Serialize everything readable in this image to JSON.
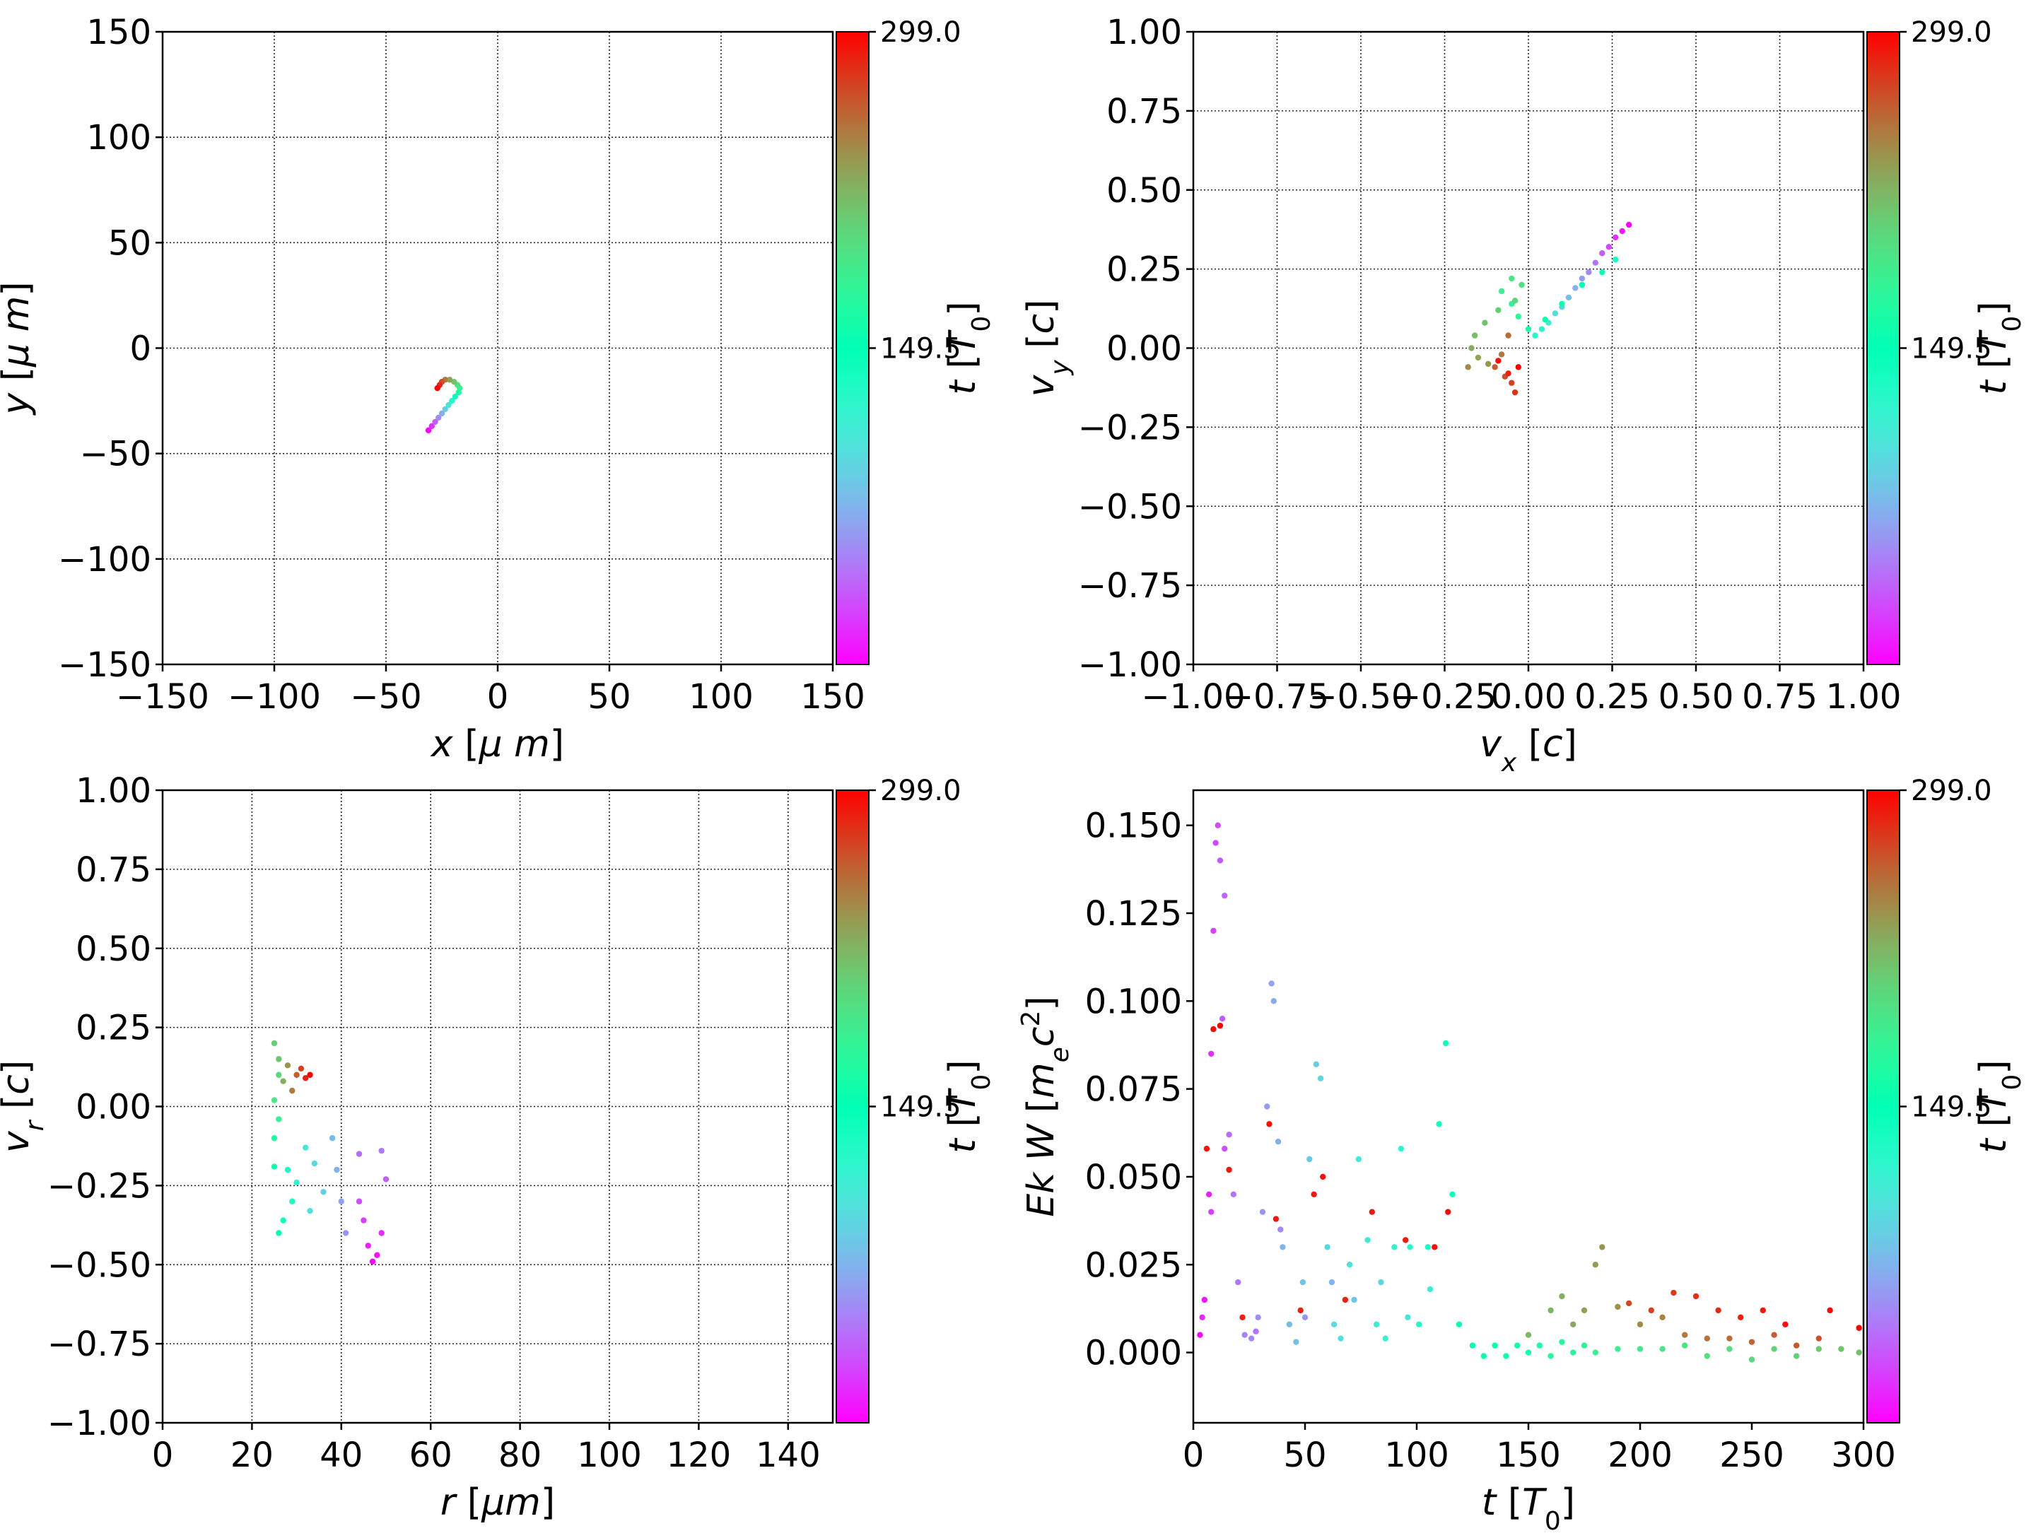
{
  "colormap": "rainbow",
  "chart_data": [
    {
      "id": "xy",
      "type": "scatter",
      "xlabel": "x  [μ m]",
      "ylabel": "y  [μ m]",
      "xlim": [
        -150,
        150
      ],
      "ylim": [
        -150,
        150
      ],
      "xticks": [
        -150,
        -100,
        -50,
        0,
        50,
        100,
        150
      ],
      "yticks": [
        -150,
        -100,
        -50,
        0,
        50,
        100,
        150
      ],
      "xtick_labels": [
        "−150",
        "−100",
        "−50",
        "0",
        "50",
        "100",
        "150"
      ],
      "ytick_labels": [
        "−150",
        "−100",
        "−50",
        "0",
        "50",
        "100",
        "150"
      ],
      "grid": true,
      "colorbar": {
        "label": "t [T0]",
        "ticks": [
          "149.5",
          "299.0"
        ]
      },
      "points": [
        [
          -31,
          -39,
          0.0
        ],
        [
          -29.5,
          -37,
          0.06
        ],
        [
          -28,
          -35,
          0.12
        ],
        [
          -26.5,
          -33,
          0.18
        ],
        [
          -25,
          -31,
          0.24
        ],
        [
          -23.5,
          -29,
          0.3
        ],
        [
          -22,
          -27,
          0.36
        ],
        [
          -20.5,
          -25,
          0.42
        ],
        [
          -19,
          -23,
          0.48
        ],
        [
          -17.5,
          -21,
          0.54
        ],
        [
          -17,
          -19,
          0.6
        ],
        [
          -18,
          -17.5,
          0.66
        ],
        [
          -19.5,
          -16,
          0.72
        ],
        [
          -21.5,
          -15,
          0.78
        ],
        [
          -23.5,
          -15,
          0.84
        ],
        [
          -25,
          -16,
          0.9
        ],
        [
          -26,
          -17.5,
          0.95
        ],
        [
          -27,
          -19,
          1.0
        ]
      ]
    },
    {
      "id": "vxvy",
      "type": "scatter",
      "xlabel": "v_x [c]",
      "ylabel": "v_y [c]",
      "xlim": [
        -1.0,
        1.0
      ],
      "ylim": [
        -1.0,
        1.0
      ],
      "xticks": [
        -1.0,
        -0.75,
        -0.5,
        -0.25,
        0.0,
        0.25,
        0.5,
        0.75,
        1.0
      ],
      "yticks": [
        -1.0,
        -0.75,
        -0.5,
        -0.25,
        0.0,
        0.25,
        0.5,
        0.75,
        1.0
      ],
      "xtick_labels": [
        "−1.00",
        "−0.75",
        "−0.50",
        "−0.25",
        "0.00",
        "0.25",
        "0.50",
        "0.75",
        "1.00"
      ],
      "ytick_labels": [
        "−1.00",
        "−0.75",
        "−0.50",
        "−0.25",
        "0.00",
        "0.25",
        "0.50",
        "0.75",
        "1.00"
      ],
      "grid": true,
      "colorbar": {
        "label": "t [T0]",
        "ticks": [
          "149.5",
          "299.0"
        ]
      },
      "points": [
        [
          0.3,
          0.39,
          0.0
        ],
        [
          0.28,
          0.37,
          0.03
        ],
        [
          0.26,
          0.35,
          0.06
        ],
        [
          0.24,
          0.32,
          0.09
        ],
        [
          0.22,
          0.3,
          0.12
        ],
        [
          0.2,
          0.27,
          0.15
        ],
        [
          0.18,
          0.24,
          0.18
        ],
        [
          0.16,
          0.22,
          0.21
        ],
        [
          0.14,
          0.19,
          0.24
        ],
        [
          0.12,
          0.16,
          0.27
        ],
        [
          0.1,
          0.13,
          0.3
        ],
        [
          0.08,
          0.11,
          0.33
        ],
        [
          0.06,
          0.08,
          0.36
        ],
        [
          0.04,
          0.06,
          0.39
        ],
        [
          0.02,
          0.04,
          0.42
        ],
        [
          0.26,
          0.28,
          0.45
        ],
        [
          0.22,
          0.24,
          0.48
        ],
        [
          0.16,
          0.2,
          0.5
        ],
        [
          0.1,
          0.14,
          0.52
        ],
        [
          0.05,
          0.09,
          0.54
        ],
        [
          0.0,
          0.06,
          0.56
        ],
        [
          -0.03,
          0.1,
          0.58
        ],
        [
          -0.05,
          0.14,
          0.6
        ],
        [
          -0.08,
          0.18,
          0.62
        ],
        [
          -0.05,
          0.22,
          0.64
        ],
        [
          -0.02,
          0.2,
          0.66
        ],
        [
          -0.04,
          0.15,
          0.68
        ],
        [
          -0.09,
          0.12,
          0.7
        ],
        [
          -0.13,
          0.08,
          0.72
        ],
        [
          -0.16,
          0.04,
          0.74
        ],
        [
          -0.17,
          0.0,
          0.76
        ],
        [
          -0.15,
          -0.03,
          0.78
        ],
        [
          -0.12,
          -0.05,
          0.8
        ],
        [
          -0.18,
          -0.06,
          0.82
        ],
        [
          -0.08,
          -0.02,
          0.84
        ],
        [
          -0.06,
          0.04,
          0.86
        ],
        [
          -0.1,
          -0.06,
          0.88
        ],
        [
          -0.07,
          -0.09,
          0.9
        ],
        [
          -0.05,
          -0.11,
          0.92
        ],
        [
          -0.04,
          -0.14,
          0.94
        ],
        [
          -0.06,
          -0.08,
          0.96
        ],
        [
          -0.09,
          -0.04,
          0.98
        ],
        [
          -0.03,
          -0.06,
          1.0
        ]
      ]
    },
    {
      "id": "rvr",
      "type": "scatter",
      "xlabel": "r [μm]",
      "ylabel": "v_r [c]",
      "xlim": [
        0,
        150
      ],
      "ylim": [
        -1.0,
        1.0
      ],
      "xticks": [
        0,
        20,
        40,
        60,
        80,
        100,
        120,
        140
      ],
      "yticks": [
        -1.0,
        -0.75,
        -0.5,
        -0.25,
        0.0,
        0.25,
        0.5,
        0.75,
        1.0
      ],
      "xtick_labels": [
        "0",
        "20",
        "40",
        "60",
        "80",
        "100",
        "120",
        "140"
      ],
      "ytick_labels": [
        "−1.00",
        "−0.75",
        "−0.50",
        "−0.25",
        "0.00",
        "0.25",
        "0.50",
        "0.75",
        "1.00"
      ],
      "grid": true,
      "colorbar": {
        "label": "t [T0]",
        "ticks": [
          "149.5",
          "299.0"
        ]
      },
      "points": [
        [
          47,
          -0.49,
          0.0
        ],
        [
          48,
          -0.47,
          0.02
        ],
        [
          46,
          -0.44,
          0.04
        ],
        [
          49,
          -0.4,
          0.06
        ],
        [
          45,
          -0.36,
          0.08
        ],
        [
          44,
          -0.3,
          0.1
        ],
        [
          50,
          -0.23,
          0.12
        ],
        [
          44,
          -0.15,
          0.14
        ],
        [
          49,
          -0.14,
          0.16
        ],
        [
          41,
          -0.4,
          0.2
        ],
        [
          40,
          -0.3,
          0.22
        ],
        [
          39,
          -0.2,
          0.24
        ],
        [
          38,
          -0.1,
          0.26
        ],
        [
          36,
          -0.27,
          0.3
        ],
        [
          34,
          -0.18,
          0.32
        ],
        [
          33,
          -0.33,
          0.34
        ],
        [
          32,
          -0.13,
          0.36
        ],
        [
          30,
          -0.24,
          0.4
        ],
        [
          29,
          -0.3,
          0.44
        ],
        [
          28,
          -0.2,
          0.46
        ],
        [
          27,
          -0.36,
          0.48
        ],
        [
          26,
          -0.4,
          0.5
        ],
        [
          25,
          -0.19,
          0.52
        ],
        [
          25,
          -0.1,
          0.56
        ],
        [
          26,
          -0.04,
          0.6
        ],
        [
          25,
          0.02,
          0.64
        ],
        [
          26,
          0.1,
          0.68
        ],
        [
          25,
          0.2,
          0.7
        ],
        [
          26,
          0.15,
          0.72
        ],
        [
          27,
          0.08,
          0.76
        ],
        [
          28,
          0.13,
          0.8
        ],
        [
          29,
          0.05,
          0.84
        ],
        [
          30,
          0.1,
          0.88
        ],
        [
          31,
          0.12,
          0.92
        ],
        [
          32,
          0.09,
          0.96
        ],
        [
          33,
          0.1,
          1.0
        ]
      ]
    },
    {
      "id": "tEk",
      "type": "scatter",
      "xlabel": "t [T0]",
      "ylabel": "Ek W [m_e c^2]",
      "xlim": [
        0,
        300
      ],
      "ylim": [
        -0.02,
        0.16
      ],
      "xticks": [
        0,
        50,
        100,
        150,
        200,
        250,
        300
      ],
      "yticks": [
        0.0,
        0.025,
        0.05,
        0.075,
        0.1,
        0.125,
        0.15
      ],
      "xtick_labels": [
        "0",
        "50",
        "100",
        "150",
        "200",
        "250",
        "300"
      ],
      "ytick_labels": [
        "0.000",
        "0.025",
        "0.050",
        "0.075",
        "0.100",
        "0.125",
        "0.150"
      ],
      "grid": false,
      "colorbar": {
        "label": "t [T0]",
        "ticks": [
          "149.5",
          "299.0"
        ]
      },
      "points": [
        [
          3,
          0.005,
          0.0
        ],
        [
          5,
          0.015,
          0.02
        ],
        [
          7,
          0.045,
          0.04
        ],
        [
          8,
          0.085,
          0.06
        ],
        [
          9,
          0.12,
          0.08
        ],
        [
          10,
          0.145,
          0.09
        ],
        [
          11,
          0.15,
          0.1
        ],
        [
          12,
          0.14,
          0.11
        ],
        [
          13,
          0.095,
          0.12
        ],
        [
          14,
          0.13,
          0.13
        ],
        [
          16,
          0.062,
          0.14
        ],
        [
          18,
          0.045,
          0.15
        ],
        [
          20,
          0.02,
          0.16
        ],
        [
          23,
          0.005,
          0.17
        ],
        [
          26,
          0.004,
          0.18
        ],
        [
          29,
          0.01,
          0.19
        ],
        [
          31,
          0.04,
          0.2
        ],
        [
          33,
          0.07,
          0.21
        ],
        [
          35,
          0.105,
          0.22
        ],
        [
          36,
          0.1,
          0.23
        ],
        [
          38,
          0.06,
          0.24
        ],
        [
          40,
          0.03,
          0.25
        ],
        [
          43,
          0.008,
          0.26
        ],
        [
          46,
          0.003,
          0.27
        ],
        [
          49,
          0.02,
          0.28
        ],
        [
          52,
          0.055,
          0.29
        ],
        [
          55,
          0.082,
          0.3
        ],
        [
          57,
          0.078,
          0.31
        ],
        [
          60,
          0.03,
          0.32
        ],
        [
          63,
          0.008,
          0.33
        ],
        [
          66,
          0.004,
          0.34
        ],
        [
          70,
          0.025,
          0.35
        ],
        [
          74,
          0.055,
          0.36
        ],
        [
          78,
          0.032,
          0.37
        ],
        [
          82,
          0.008,
          0.38
        ],
        [
          86,
          0.004,
          0.39
        ],
        [
          90,
          0.03,
          0.4
        ],
        [
          93,
          0.058,
          0.41
        ],
        [
          97,
          0.03,
          0.42
        ],
        [
          101,
          0.008,
          0.43
        ],
        [
          105,
          0.03,
          0.44
        ],
        [
          110,
          0.065,
          0.46
        ],
        [
          113,
          0.088,
          0.47
        ],
        [
          116,
          0.045,
          0.48
        ],
        [
          119,
          0.008,
          0.49
        ],
        [
          125,
          0.002,
          0.5
        ],
        [
          130,
          -0.001,
          0.51
        ],
        [
          135,
          0.002,
          0.52
        ],
        [
          140,
          -0.001,
          0.53
        ],
        [
          145,
          0.002,
          0.54
        ],
        [
          150,
          0.0,
          0.55
        ],
        [
          155,
          0.002,
          0.56
        ],
        [
          160,
          -0.001,
          0.57
        ],
        [
          165,
          0.003,
          0.58
        ],
        [
          170,
          0.0,
          0.59
        ],
        [
          175,
          0.002,
          0.6
        ],
        [
          180,
          0.0,
          0.61
        ],
        [
          190,
          0.001,
          0.62
        ],
        [
          200,
          0.001,
          0.63
        ],
        [
          210,
          0.001,
          0.64
        ],
        [
          220,
          0.002,
          0.65
        ],
        [
          230,
          -0.001,
          0.66
        ],
        [
          240,
          0.001,
          0.67
        ],
        [
          250,
          -0.002,
          0.68
        ],
        [
          260,
          0.001,
          0.69
        ],
        [
          270,
          -0.001,
          0.7
        ],
        [
          280,
          0.001,
          0.71
        ],
        [
          290,
          0.001,
          0.72
        ],
        [
          298,
          0.0,
          0.73
        ],
        [
          150,
          0.005,
          0.74
        ],
        [
          160,
          0.012,
          0.75
        ],
        [
          165,
          0.016,
          0.76
        ],
        [
          170,
          0.008,
          0.77
        ],
        [
          175,
          0.012,
          0.78
        ],
        [
          180,
          0.025,
          0.79
        ],
        [
          183,
          0.03,
          0.8
        ],
        [
          190,
          0.013,
          0.81
        ],
        [
          200,
          0.008,
          0.82
        ],
        [
          210,
          0.01,
          0.83
        ],
        [
          220,
          0.005,
          0.84
        ],
        [
          230,
          0.004,
          0.85
        ],
        [
          240,
          0.004,
          0.86
        ],
        [
          250,
          0.003,
          0.87
        ],
        [
          260,
          0.005,
          0.88
        ],
        [
          270,
          0.002,
          0.89
        ],
        [
          280,
          0.004,
          0.9
        ],
        [
          195,
          0.014,
          0.91
        ],
        [
          205,
          0.012,
          0.92
        ],
        [
          215,
          0.017,
          0.93
        ],
        [
          225,
          0.016,
          0.94
        ],
        [
          235,
          0.012,
          0.95
        ],
        [
          245,
          0.01,
          0.96
        ],
        [
          255,
          0.012,
          0.97
        ],
        [
          265,
          0.008,
          0.98
        ],
        [
          285,
          0.012,
          0.99
        ],
        [
          298,
          0.007,
          1.0
        ],
        [
          6,
          0.058,
          0.98
        ],
        [
          9,
          0.092,
          0.99
        ],
        [
          12,
          0.093,
          1.0
        ],
        [
          16,
          0.052,
          0.97
        ],
        [
          22,
          0.01,
          0.96
        ],
        [
          34,
          0.065,
          0.98
        ],
        [
          37,
          0.038,
          0.97
        ],
        [
          48,
          0.012,
          0.96
        ],
        [
          54,
          0.045,
          0.97
        ],
        [
          58,
          0.05,
          0.98
        ],
        [
          68,
          0.015,
          0.96
        ],
        [
          80,
          0.04,
          0.97
        ],
        [
          95,
          0.032,
          0.97
        ],
        [
          108,
          0.03,
          0.98
        ],
        [
          114,
          0.04,
          0.99
        ],
        [
          4,
          0.01,
          0.05
        ],
        [
          8,
          0.04,
          0.08
        ],
        [
          14,
          0.058,
          0.1
        ],
        [
          28,
          0.006,
          0.15
        ],
        [
          39,
          0.035,
          0.18
        ],
        [
          50,
          0.01,
          0.2
        ],
        [
          62,
          0.02,
          0.25
        ],
        [
          72,
          0.015,
          0.28
        ],
        [
          84,
          0.02,
          0.32
        ],
        [
          96,
          0.01,
          0.35
        ],
        [
          106,
          0.018,
          0.38
        ]
      ]
    }
  ]
}
